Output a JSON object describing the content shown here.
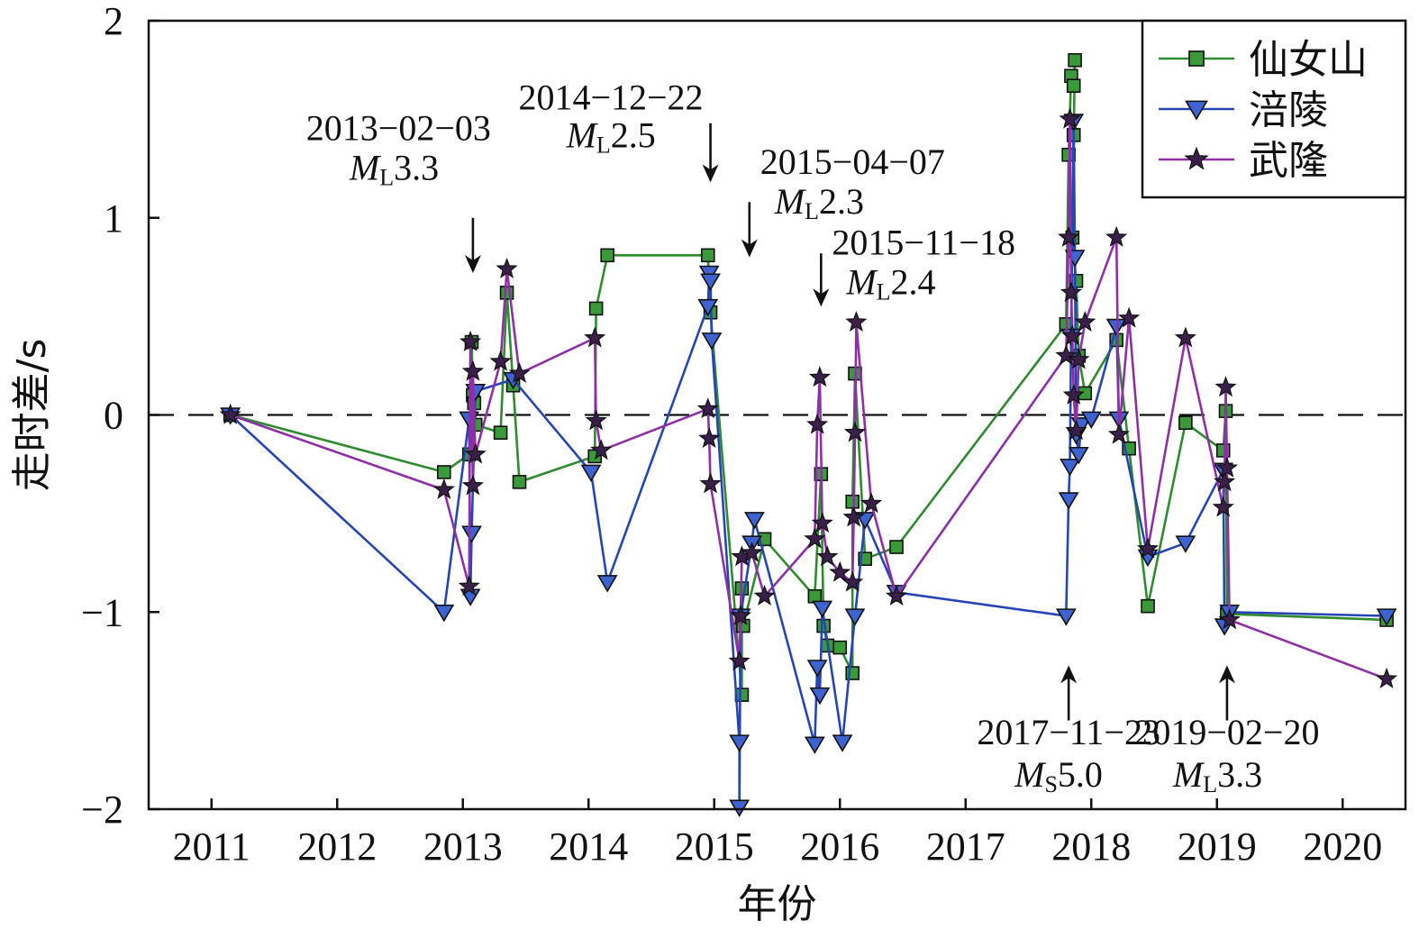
{
  "chart_data": {
    "type": "line",
    "xlabel": "年份",
    "ylabel": "走时差/s",
    "xlim": [
      2010.5,
      2020.5
    ],
    "ylim": [
      -2,
      2
    ],
    "x_ticks": [
      {
        "v": 2011,
        "label": "2011"
      },
      {
        "v": 2012,
        "label": "2012"
      },
      {
        "v": 2013,
        "label": "2013"
      },
      {
        "v": 2014,
        "label": "2014"
      },
      {
        "v": 2015,
        "label": "2015"
      },
      {
        "v": 2016,
        "label": "2016"
      },
      {
        "v": 2017,
        "label": "2017"
      },
      {
        "v": 2018,
        "label": "2018"
      },
      {
        "v": 2019,
        "label": "2019"
      },
      {
        "v": 2020,
        "label": "2020"
      }
    ],
    "y_ticks": [
      {
        "v": 2,
        "label": "2"
      },
      {
        "v": 1,
        "label": "1"
      },
      {
        "v": 0,
        "label": "0"
      },
      {
        "v": -1,
        "label": "−1"
      },
      {
        "v": -2,
        "label": "−2"
      }
    ],
    "reference_line": {
      "y": 0,
      "style": "dashed"
    },
    "legend_position": "top-right",
    "series": [
      {
        "name": "仙女山",
        "color": "#2e8b2e",
        "marker": "square",
        "fill": "#3a9a3a",
        "points": [
          [
            2011.15,
            0.0
          ],
          [
            2012.85,
            -0.29
          ],
          [
            2013.05,
            -0.2
          ],
          [
            2013.07,
            0.37
          ],
          [
            2013.08,
            0.1
          ],
          [
            2013.09,
            0.06
          ],
          [
            2013.1,
            -0.05
          ],
          [
            2013.3,
            -0.09
          ],
          [
            2013.35,
            0.62
          ],
          [
            2013.4,
            0.15
          ],
          [
            2013.45,
            -0.34
          ],
          [
            2014.05,
            -0.21
          ],
          [
            2014.06,
            0.54
          ],
          [
            2014.15,
            0.81
          ],
          [
            2014.95,
            0.81
          ],
          [
            2014.97,
            0.52
          ],
          [
            2015.22,
            -1.42
          ],
          [
            2015.22,
            -0.88
          ],
          [
            2015.23,
            -1.07
          ],
          [
            2015.4,
            -0.63
          ],
          [
            2015.8,
            -0.92
          ],
          [
            2015.85,
            -0.3
          ],
          [
            2015.87,
            -1.07
          ],
          [
            2015.9,
            -1.17
          ],
          [
            2016.0,
            -1.18
          ],
          [
            2016.1,
            -1.31
          ],
          [
            2016.1,
            -0.44
          ],
          [
            2016.12,
            0.21
          ],
          [
            2016.2,
            -0.73
          ],
          [
            2016.45,
            -0.67
          ],
          [
            2017.8,
            0.46
          ],
          [
            2017.82,
            1.32
          ],
          [
            2017.84,
            1.72
          ],
          [
            2017.86,
            1.67
          ],
          [
            2017.87,
            1.8
          ],
          [
            2017.86,
            1.42
          ],
          [
            2017.85,
            0.9
          ],
          [
            2017.88,
            0.68
          ],
          [
            2017.9,
            0.3
          ],
          [
            2017.95,
            0.11
          ],
          [
            2018.2,
            0.38
          ],
          [
            2018.3,
            -0.17
          ],
          [
            2018.45,
            -0.97
          ],
          [
            2018.75,
            -0.04
          ],
          [
            2019.05,
            -0.18
          ],
          [
            2019.07,
            0.02
          ],
          [
            2019.08,
            -1.01
          ],
          [
            2020.35,
            -1.04
          ]
        ]
      },
      {
        "name": "涪陵",
        "color": "#2545b5",
        "marker": "triangle-down",
        "fill": "#3d63d0",
        "points": [
          [
            2011.15,
            0.0
          ],
          [
            2012.85,
            -1.0
          ],
          [
            2013.05,
            -0.02
          ],
          [
            2013.06,
            -0.92
          ],
          [
            2013.07,
            -0.6
          ],
          [
            2013.1,
            0.12
          ],
          [
            2013.4,
            0.18
          ],
          [
            2014.02,
            -0.29
          ],
          [
            2014.15,
            -0.85
          ],
          [
            2014.95,
            0.55
          ],
          [
            2014.96,
            0.72
          ],
          [
            2014.97,
            0.68
          ],
          [
            2014.98,
            0.38
          ],
          [
            2015.2,
            -1.66
          ],
          [
            2015.2,
            -1.99
          ],
          [
            2015.21,
            -1.02
          ],
          [
            2015.3,
            -0.65
          ],
          [
            2015.32,
            -0.53
          ],
          [
            2015.8,
            -1.67
          ],
          [
            2015.82,
            -1.28
          ],
          [
            2015.84,
            -1.42
          ],
          [
            2015.86,
            -0.98
          ],
          [
            2016.02,
            -1.66
          ],
          [
            2016.12,
            -1.02
          ],
          [
            2016.2,
            -0.53
          ],
          [
            2016.45,
            -0.9
          ],
          [
            2017.8,
            -1.02
          ],
          [
            2017.82,
            -0.43
          ],
          [
            2017.83,
            -0.26
          ],
          [
            2017.84,
            0.4
          ],
          [
            2017.86,
            1.49
          ],
          [
            2017.87,
            0.8
          ],
          [
            2017.88,
            -0.1
          ],
          [
            2017.9,
            -0.2
          ],
          [
            2017.92,
            -0.05
          ],
          [
            2018.0,
            -0.02
          ],
          [
            2018.2,
            0.45
          ],
          [
            2018.22,
            -0.02
          ],
          [
            2018.45,
            -0.72
          ],
          [
            2018.75,
            -0.65
          ],
          [
            2019.05,
            -0.28
          ],
          [
            2019.06,
            -1.07
          ],
          [
            2019.1,
            -1.0
          ],
          [
            2020.35,
            -1.02
          ]
        ]
      },
      {
        "name": "武隆",
        "color": "#8e2fa8",
        "marker": "star",
        "fill": "#3a1f4a",
        "points": [
          [
            2011.15,
            0.0
          ],
          [
            2012.85,
            -0.38
          ],
          [
            2013.05,
            -0.87
          ],
          [
            2013.06,
            0.37
          ],
          [
            2013.08,
            -0.36
          ],
          [
            2013.08,
            0.22
          ],
          [
            2013.1,
            -0.2
          ],
          [
            2013.3,
            0.27
          ],
          [
            2013.35,
            0.74
          ],
          [
            2013.45,
            0.21
          ],
          [
            2014.05,
            0.39
          ],
          [
            2014.06,
            -0.03
          ],
          [
            2014.1,
            -0.18
          ],
          [
            2014.95,
            0.03
          ],
          [
            2014.96,
            -0.12
          ],
          [
            2014.97,
            -0.35
          ],
          [
            2015.2,
            -1.25
          ],
          [
            2015.21,
            -1.02
          ],
          [
            2015.22,
            -0.72
          ],
          [
            2015.3,
            -0.7
          ],
          [
            2015.4,
            -0.92
          ],
          [
            2015.8,
            -0.63
          ],
          [
            2015.82,
            -0.05
          ],
          [
            2015.84,
            0.19
          ],
          [
            2015.86,
            -0.55
          ],
          [
            2015.9,
            -0.72
          ],
          [
            2016.0,
            -0.8
          ],
          [
            2016.1,
            -0.85
          ],
          [
            2016.11,
            -0.52
          ],
          [
            2016.12,
            -0.09
          ],
          [
            2016.13,
            0.47
          ],
          [
            2016.25,
            -0.45
          ],
          [
            2016.45,
            -0.92
          ],
          [
            2017.8,
            0.3
          ],
          [
            2017.82,
            0.9
          ],
          [
            2017.83,
            1.5
          ],
          [
            2017.84,
            0.62
          ],
          [
            2017.85,
            0.4
          ],
          [
            2017.86,
            0.1
          ],
          [
            2017.88,
            -0.08
          ],
          [
            2017.9,
            0.28
          ],
          [
            2017.95,
            0.47
          ],
          [
            2018.2,
            0.9
          ],
          [
            2018.22,
            -0.1
          ],
          [
            2018.3,
            0.49
          ],
          [
            2018.45,
            -0.68
          ],
          [
            2018.75,
            0.39
          ],
          [
            2019.05,
            -0.47
          ],
          [
            2019.06,
            -0.34
          ],
          [
            2019.07,
            0.14
          ],
          [
            2019.08,
            -0.27
          ],
          [
            2019.1,
            -1.04
          ],
          [
            2020.35,
            -1.34
          ]
        ]
      }
    ],
    "annotations": [
      {
        "date": "2013−02−03",
        "mag_prefix": "M",
        "mag_sub": "L",
        "mag_value": "3.3",
        "x": 2013.08,
        "direction": "down",
        "arrow_tip_y": 0.72,
        "arrow_tail_y": 1.0,
        "text_y": 1.22
      },
      {
        "date": "2014−12−22",
        "mag_prefix": "M",
        "mag_sub": "L",
        "mag_value": "2.5",
        "x": 2014.97,
        "direction": "down",
        "arrow_tip_y": 1.18,
        "arrow_tail_y": 1.48,
        "text_y": 1.55
      },
      {
        "date": "2015−04−07",
        "mag_prefix": "M",
        "mag_sub": "L",
        "mag_value": "2.3",
        "x": 2015.28,
        "direction": "down",
        "arrow_tip_y": 0.8,
        "arrow_tail_y": 1.08,
        "text_y": 1.05
      },
      {
        "date": "2015−11−18",
        "mag_prefix": "M",
        "mag_sub": "L",
        "mag_value": "2.4",
        "x": 2015.85,
        "direction": "down",
        "arrow_tip_y": 0.55,
        "arrow_tail_y": 0.82,
        "text_y": 0.64
      },
      {
        "date": "2017−11−23",
        "mag_prefix": "M",
        "mag_sub": "S",
        "mag_value": "5.0",
        "x": 2017.82,
        "direction": "up",
        "arrow_tip_y": -1.27,
        "arrow_tail_y": -1.55,
        "text_y": -1.67
      },
      {
        "date": "2019−02−20",
        "mag_prefix": "M",
        "mag_sub": "L",
        "mag_value": "3.3",
        "x": 2019.08,
        "direction": "up",
        "arrow_tip_y": -1.27,
        "arrow_tail_y": -1.55,
        "text_y": -1.67
      }
    ]
  }
}
